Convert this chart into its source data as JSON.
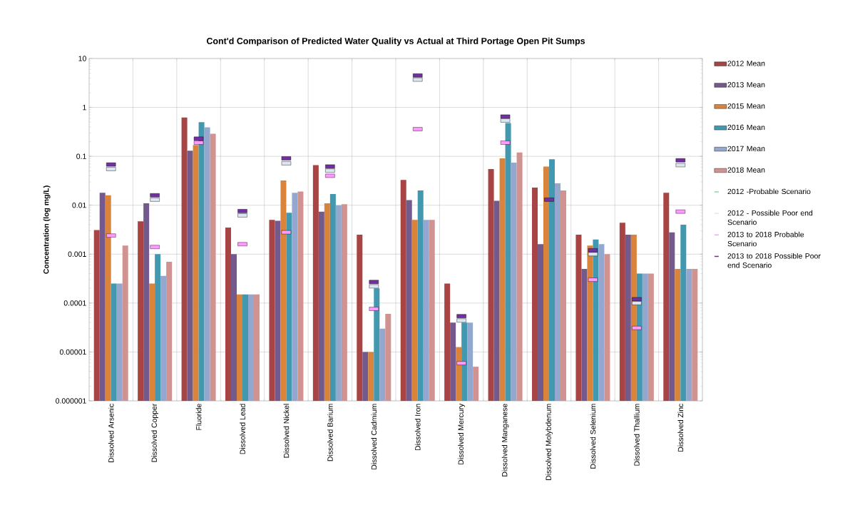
{
  "chart_data": {
    "type": "bar",
    "title": "Cont'd Comparison of Predicted Water Quality vs Actual at Third Portage Open Pit Sumps",
    "ylabel": "Concentration (log mg/L)",
    "categories": [
      "Dissolved Arsenic",
      "Dissolved Copper",
      "Fluoride",
      "Dissolved Lead",
      "Dissolved Nickel",
      "Dissolved Barium",
      "Dissolved Cadmium",
      "Dissolved Iron",
      "Dissolved Mercury",
      "Dissolved Manganese",
      "Dissolved Molybdenum",
      "Dissolved Selenium",
      "Dissolved Thallium",
      "Dissolved Zinc"
    ],
    "log": "y",
    "ylim": [
      1e-06,
      10
    ],
    "yticks": [
      {
        "value": 1e-06,
        "label": "0.000001"
      },
      {
        "value": 1e-05,
        "label": "0.00001"
      },
      {
        "value": 0.0001,
        "label": "0.0001"
      },
      {
        "value": 0.001,
        "label": "0.001"
      },
      {
        "value": 0.01,
        "label": "0.01"
      },
      {
        "value": 0.1,
        "label": "0.1"
      },
      {
        "value": 1,
        "label": "1"
      },
      {
        "value": 10,
        "label": "10"
      }
    ],
    "grid": true,
    "legend": "right",
    "series": [
      {
        "name": "2012 Mean",
        "color": "#a84444",
        "values": [
          0.0031,
          0.0047,
          0.62,
          0.0035,
          0.005,
          0.066,
          0.0025,
          0.033,
          0.00025,
          0.055,
          0.023,
          0.0025,
          0.0044,
          0.018
        ]
      },
      {
        "name": "2013 Mean",
        "color": "#745a8c",
        "values": [
          0.018,
          0.011,
          0.13,
          0.001,
          0.0048,
          0.0074,
          1e-05,
          0.0127,
          4e-05,
          0.0123,
          0.0016,
          0.0005,
          0.0025,
          0.0028
        ]
      },
      {
        "name": "2015 Mean",
        "color": "#d9843a",
        "values": [
          0.016,
          0.00025,
          0.17,
          0.00015,
          0.032,
          0.011,
          1e-05,
          0.005,
          1.26e-05,
          0.091,
          0.062,
          0.0015,
          0.0025,
          0.0005
        ]
      },
      {
        "name": "2016 Mean",
        "color": "#4298ae",
        "values": [
          0.00025,
          0.001,
          0.5,
          0.00015,
          0.007,
          0.017,
          0.0002,
          0.02,
          4e-05,
          0.48,
          0.087,
          0.002,
          0.0004,
          0.004
        ]
      },
      {
        "name": "2017 Mean",
        "color": "#94a8cf",
        "values": [
          0.00025,
          0.00036,
          0.39,
          0.00015,
          0.018,
          0.01,
          3e-05,
          0.005,
          4e-05,
          0.074,
          0.028,
          0.0016,
          0.0004,
          0.0005
        ]
      },
      {
        "name": "2018 Mean",
        "color": "#d09391",
        "values": [
          0.0015,
          0.0007,
          0.29,
          0.00015,
          0.019,
          0.0105,
          6e-05,
          0.005,
          5e-06,
          0.12,
          0.02,
          0.001,
          0.0004,
          0.0005
        ]
      },
      {
        "name": "2012 -Probable Scenario",
        "type": "scatter",
        "color": "#7fd9a0",
        "values": [
          null,
          null,
          null,
          null,
          null,
          null,
          null,
          null,
          null,
          null,
          null,
          null,
          null,
          null
        ]
      },
      {
        "name": "2012 - Possible Poor end Scenario",
        "type": "scatter",
        "color": "#dce6f2",
        "values": [
          0.055,
          0.013,
          null,
          0.0062,
          0.072,
          0.051,
          0.00022,
          3.7,
          4.4e-05,
          0.54,
          null,
          0.001,
          0.0001,
          0.066
        ]
      },
      {
        "name": "2013 to 2018 Probable Scenario",
        "type": "scatter",
        "color": "#ff99ff",
        "values": [
          0.0024,
          0.0014,
          0.19,
          0.0016,
          0.0028,
          0.04,
          7.6e-05,
          0.36,
          5.9e-06,
          0.19,
          null,
          0.0003,
          3.1e-05,
          0.0074
        ]
      },
      {
        "name": "2013 to 2018 Possible Poor end Scenario",
        "type": "scatter",
        "color": "#7030a0",
        "values": [
          0.068,
          0.016,
          0.23,
          0.0076,
          0.091,
          0.062,
          0.00027,
          4.5,
          5.4e-05,
          0.65,
          0.013,
          0.0012,
          0.00012,
          0.083
        ]
      }
    ]
  }
}
